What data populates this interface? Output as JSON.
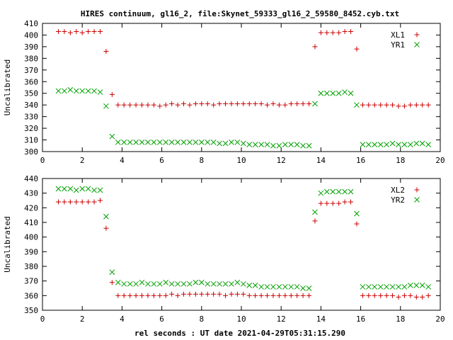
{
  "title": "HIRES continuum, gl16_2, file:Skynet_59333_gl16_2_59580_8452.cyb.txt",
  "xlabel": "rel seconds : UT date 2021-04-29T05:31:15.290",
  "chart_data": [
    {
      "type": "scatter",
      "ylabel": "Uncalibrated",
      "xlim": [
        0,
        20
      ],
      "ylim": [
        300,
        410
      ],
      "xticks": [
        0,
        2,
        4,
        6,
        8,
        10,
        12,
        14,
        16,
        18,
        20
      ],
      "yticks": [
        300,
        310,
        320,
        330,
        340,
        350,
        360,
        370,
        380,
        390,
        400,
        410
      ],
      "grid": false,
      "legend_position": "top-right",
      "series": [
        {
          "name": "XL1",
          "marker": "plus",
          "color": "#cc0000",
          "x": [
            0.8,
            1.1,
            1.4,
            1.7,
            2.0,
            2.3,
            2.6,
            2.9,
            3.2,
            3.5,
            3.8,
            4.1,
            4.4,
            4.7,
            5.0,
            5.3,
            5.6,
            5.9,
            6.2,
            6.5,
            6.8,
            7.1,
            7.4,
            7.7,
            8.0,
            8.3,
            8.6,
            8.9,
            9.2,
            9.5,
            9.8,
            10.1,
            10.4,
            10.7,
            11.0,
            11.3,
            11.6,
            11.9,
            12.2,
            12.5,
            12.8,
            13.1,
            13.4,
            13.7,
            14.0,
            14.3,
            14.6,
            14.9,
            15.2,
            15.5,
            15.8,
            16.1,
            16.4,
            16.7,
            17.0,
            17.3,
            17.6,
            17.9,
            18.2,
            18.5,
            18.8,
            19.1,
            19.4
          ],
          "y": [
            403,
            403,
            402,
            403,
            402,
            403,
            403,
            403,
            386,
            349,
            340,
            340,
            340,
            340,
            340,
            340,
            340,
            339,
            340,
            341,
            340,
            341,
            340,
            341,
            341,
            341,
            340,
            341,
            341,
            341,
            341,
            341,
            341,
            341,
            341,
            340,
            341,
            340,
            340,
            341,
            341,
            341,
            341,
            390,
            402,
            402,
            402,
            402,
            403,
            403,
            388,
            340,
            340,
            340,
            340,
            340,
            340,
            339,
            339,
            340,
            340,
            340,
            340
          ]
        },
        {
          "name": "YR1",
          "marker": "x",
          "color": "#00a000",
          "x": [
            0.8,
            1.1,
            1.4,
            1.7,
            2.0,
            2.3,
            2.6,
            2.9,
            3.2,
            3.5,
            3.8,
            4.1,
            4.4,
            4.7,
            5.0,
            5.3,
            5.6,
            5.9,
            6.2,
            6.5,
            6.8,
            7.1,
            7.4,
            7.7,
            8.0,
            8.3,
            8.6,
            8.9,
            9.2,
            9.5,
            9.8,
            10.1,
            10.4,
            10.7,
            11.0,
            11.3,
            11.6,
            11.9,
            12.2,
            12.5,
            12.8,
            13.1,
            13.4,
            13.7,
            14.0,
            14.3,
            14.6,
            14.9,
            15.2,
            15.5,
            15.8,
            16.1,
            16.4,
            16.7,
            17.0,
            17.3,
            17.6,
            17.9,
            18.2,
            18.5,
            18.8,
            19.1,
            19.4
          ],
          "y": [
            352,
            352,
            353,
            352,
            352,
            352,
            352,
            351,
            339,
            313,
            308,
            308,
            308,
            308,
            308,
            308,
            308,
            308,
            308,
            308,
            308,
            308,
            308,
            308,
            308,
            308,
            308,
            307,
            307,
            308,
            308,
            307,
            306,
            306,
            306,
            306,
            305,
            305,
            306,
            306,
            306,
            305,
            305,
            341,
            350,
            350,
            350,
            350,
            351,
            350,
            340,
            306,
            306,
            306,
            306,
            306,
            307,
            306,
            306,
            306,
            307,
            307,
            306
          ]
        }
      ]
    },
    {
      "type": "scatter",
      "ylabel": "Uncalibrated",
      "xlim": [
        0,
        20
      ],
      "ylim": [
        350,
        440
      ],
      "xticks": [
        0,
        2,
        4,
        6,
        8,
        10,
        12,
        14,
        16,
        18,
        20
      ],
      "yticks": [
        350,
        360,
        370,
        380,
        390,
        400,
        410,
        420,
        430,
        440
      ],
      "grid": false,
      "legend_position": "top-right",
      "series": [
        {
          "name": "XL2",
          "marker": "plus",
          "color": "#cc0000",
          "x": [
            0.8,
            1.1,
            1.4,
            1.7,
            2.0,
            2.3,
            2.6,
            2.9,
            3.2,
            3.5,
            3.8,
            4.1,
            4.4,
            4.7,
            5.0,
            5.3,
            5.6,
            5.9,
            6.2,
            6.5,
            6.8,
            7.1,
            7.4,
            7.7,
            8.0,
            8.3,
            8.6,
            8.9,
            9.2,
            9.5,
            9.8,
            10.1,
            10.4,
            10.7,
            11.0,
            11.3,
            11.6,
            11.9,
            12.2,
            12.5,
            12.8,
            13.1,
            13.4,
            13.7,
            14.0,
            14.3,
            14.6,
            14.9,
            15.2,
            15.5,
            15.8,
            16.1,
            16.4,
            16.7,
            17.0,
            17.3,
            17.6,
            17.9,
            18.2,
            18.5,
            18.8,
            19.1,
            19.4
          ],
          "y": [
            424,
            424,
            424,
            424,
            424,
            424,
            424,
            425,
            406,
            369,
            360,
            360,
            360,
            360,
            360,
            360,
            360,
            360,
            360,
            361,
            360,
            361,
            361,
            361,
            361,
            361,
            361,
            361,
            360,
            361,
            361,
            361,
            360,
            360,
            360,
            360,
            360,
            360,
            360,
            360,
            360,
            360,
            360,
            411,
            423,
            423,
            423,
            423,
            424,
            424,
            409,
            360,
            360,
            360,
            360,
            360,
            360,
            359,
            360,
            360,
            359,
            359,
            360
          ]
        },
        {
          "name": "YR2",
          "marker": "x",
          "color": "#00a000",
          "x": [
            0.8,
            1.1,
            1.4,
            1.7,
            2.0,
            2.3,
            2.6,
            2.9,
            3.2,
            3.5,
            3.8,
            4.1,
            4.4,
            4.7,
            5.0,
            5.3,
            5.6,
            5.9,
            6.2,
            6.5,
            6.8,
            7.1,
            7.4,
            7.7,
            8.0,
            8.3,
            8.6,
            8.9,
            9.2,
            9.5,
            9.8,
            10.1,
            10.4,
            10.7,
            11.0,
            11.3,
            11.6,
            11.9,
            12.2,
            12.5,
            12.8,
            13.1,
            13.4,
            13.7,
            14.0,
            14.3,
            14.6,
            14.9,
            15.2,
            15.5,
            15.8,
            16.1,
            16.4,
            16.7,
            17.0,
            17.3,
            17.6,
            17.9,
            18.2,
            18.5,
            18.8,
            19.1,
            19.4
          ],
          "y": [
            433,
            433,
            433,
            432,
            433,
            433,
            432,
            432,
            414,
            376,
            369,
            368,
            368,
            368,
            369,
            368,
            368,
            368,
            369,
            368,
            368,
            368,
            368,
            369,
            369,
            368,
            368,
            368,
            368,
            368,
            369,
            368,
            367,
            367,
            366,
            366,
            366,
            366,
            366,
            366,
            366,
            365,
            365,
            417,
            430,
            431,
            431,
            431,
            431,
            431,
            416,
            366,
            366,
            366,
            366,
            366,
            366,
            366,
            366,
            367,
            367,
            367,
            366
          ]
        }
      ]
    }
  ]
}
